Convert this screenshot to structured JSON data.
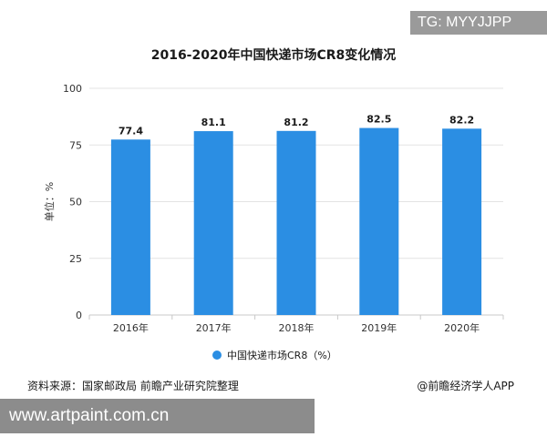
{
  "tag": "TG: MYYJJPP",
  "source": "资料来源：国家邮政局 前瞻产业研究院整理",
  "brand": "@前瞻经济学人APP",
  "watermark_url": "www.artpaint.com.cn",
  "colors": {
    "bar": "#2b8ee3",
    "grid": "#e3e3e3",
    "axis": "#c8c8c8"
  },
  "chart_data": {
    "type": "bar",
    "title": "2016-2020年中国快递市场CR8变化情况",
    "xlabel": "",
    "ylabel": "单位：%",
    "categories": [
      "2016年",
      "2017年",
      "2018年",
      "2019年",
      "2020年"
    ],
    "series": [
      {
        "name": "中国快递市场CR8（%）",
        "values": [
          77.4,
          81.1,
          81.2,
          82.5,
          82.2
        ]
      }
    ],
    "value_labels": [
      "77.4",
      "81.1",
      "81.2",
      "82.5",
      "82.2"
    ],
    "ylim": [
      0,
      100
    ],
    "yticks": [
      0,
      25,
      50,
      75,
      100
    ],
    "ytick_labels": [
      "0",
      "25",
      "50",
      "75",
      "100"
    ],
    "grid": true,
    "legend_position": "bottom"
  }
}
